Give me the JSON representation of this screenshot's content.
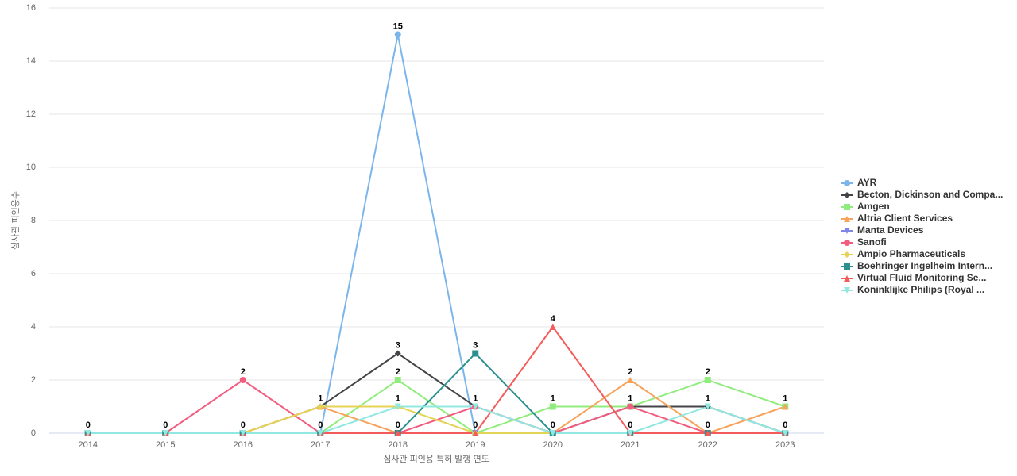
{
  "chart_data": {
    "type": "line",
    "x_label": "심사관 피인용 특허 발행 연도",
    "y_label": "심사관 피인용수",
    "categories": [
      "2014",
      "2015",
      "2016",
      "2017",
      "2018",
      "2019",
      "2020",
      "2021",
      "2022",
      "2023"
    ],
    "ylim": [
      0,
      16
    ],
    "yticks": [
      0,
      2,
      4,
      6,
      8,
      10,
      12,
      14,
      16
    ],
    "grid": true,
    "legend": "right",
    "series": [
      {
        "name": "AYR",
        "color": "#7cb5ec",
        "values": [
          0,
          0,
          0,
          0,
          15,
          0,
          0,
          0,
          0,
          0
        ]
      },
      {
        "name": "Becton, Dickinson and Compa...",
        "color": "#434348",
        "values": [
          0,
          0,
          0,
          1,
          3,
          1,
          0,
          1,
          1,
          0
        ]
      },
      {
        "name": "Amgen",
        "color": "#90ed7d",
        "values": [
          0,
          0,
          0,
          0,
          2,
          0,
          1,
          1,
          2,
          1
        ]
      },
      {
        "name": "Altria Client Services",
        "color": "#f7a35c",
        "values": [
          0,
          0,
          0,
          1,
          0,
          0,
          0,
          2,
          0,
          1
        ]
      },
      {
        "name": "Manta Devices",
        "color": "#8085e9",
        "values": [
          0,
          0,
          0,
          0,
          0,
          0,
          0,
          0,
          0,
          0
        ]
      },
      {
        "name": "Sanofi",
        "color": "#f15c80",
        "values": [
          0,
          0,
          2,
          0,
          0,
          1,
          0,
          1,
          0,
          0
        ]
      },
      {
        "name": "Ampio Pharmaceuticals",
        "color": "#e4d354",
        "values": [
          0,
          0,
          0,
          1,
          1,
          0,
          0,
          0,
          0,
          0
        ]
      },
      {
        "name": "Boehringer Ingelheim Intern...",
        "color": "#2b908f",
        "values": [
          0,
          0,
          0,
          0,
          0,
          3,
          0,
          0,
          0,
          0
        ]
      },
      {
        "name": "Virtual Fluid Monitoring Se...",
        "color": "#f45b5b",
        "values": [
          0,
          0,
          0,
          0,
          0,
          0,
          4,
          0,
          0,
          0
        ]
      },
      {
        "name": "Koninklijke Philips (Royal ...",
        "color": "#91e8e1",
        "values": [
          0,
          0,
          0,
          0,
          1,
          1,
          0,
          0,
          1,
          0
        ]
      }
    ]
  }
}
